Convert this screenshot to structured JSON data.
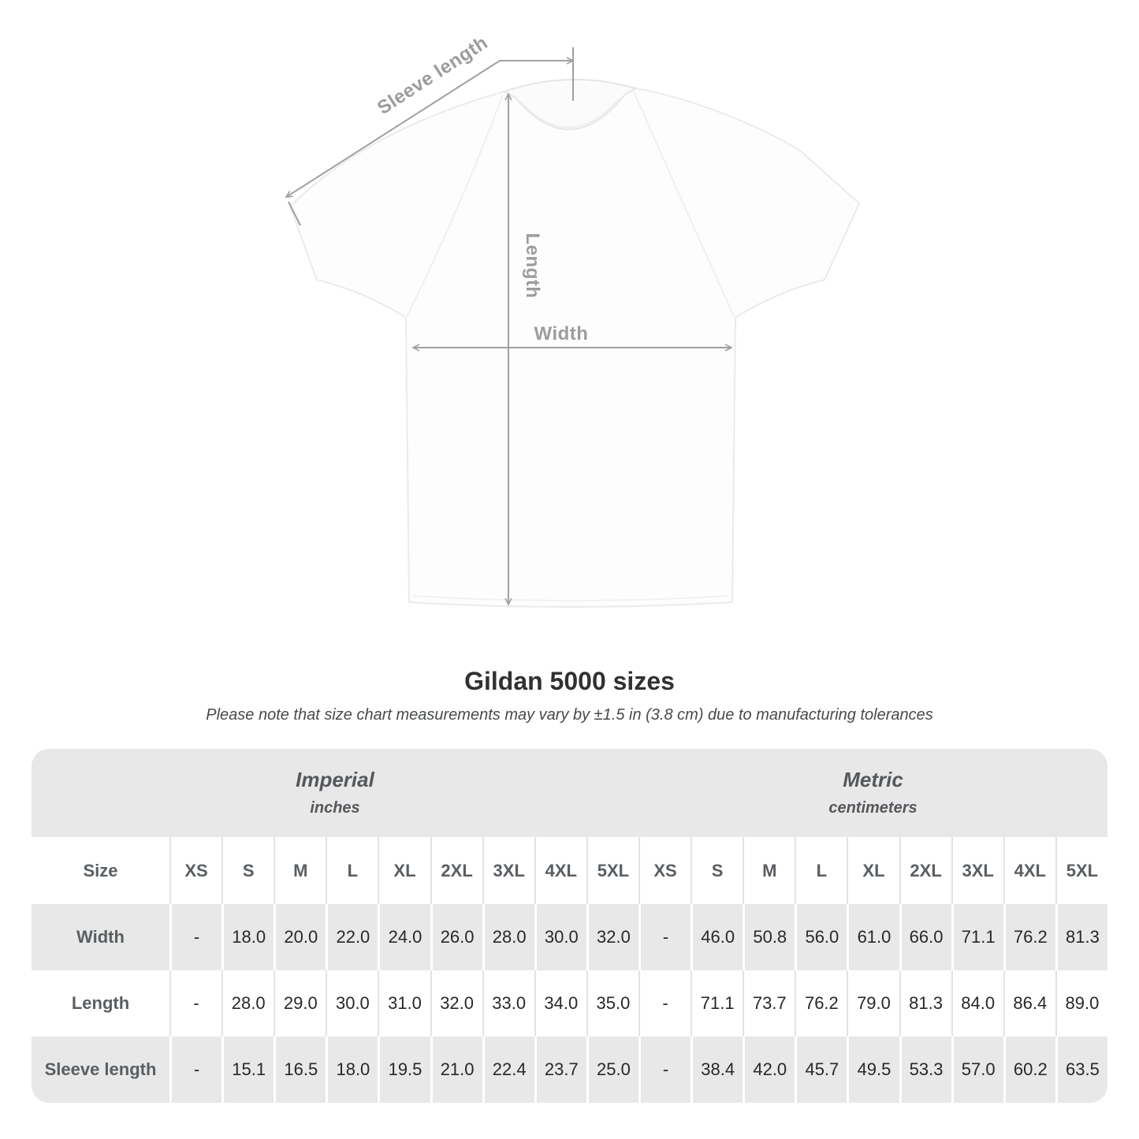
{
  "diagram": {
    "sleeve_label": "Sleeve length",
    "length_label": "Length",
    "width_label": "Width"
  },
  "title": "Gildan 5000 sizes",
  "subtitle": "Please note that size chart measurements may vary by ±1.5 in (3.8 cm) due to manufacturing tolerances",
  "table": {
    "size_header": "Size",
    "sizes": [
      "XS",
      "S",
      "M",
      "L",
      "XL",
      "2XL",
      "3XL",
      "4XL",
      "5XL"
    ],
    "unit_groups": [
      {
        "label": "Imperial",
        "sublabel": "inches"
      },
      {
        "label": "Metric",
        "sublabel": "centimeters"
      }
    ],
    "rows": [
      {
        "label": "Width",
        "imperial": [
          "-",
          "18.0",
          "20.0",
          "22.0",
          "24.0",
          "26.0",
          "28.0",
          "30.0",
          "32.0"
        ],
        "metric": [
          "-",
          "46.0",
          "50.8",
          "56.0",
          "61.0",
          "66.0",
          "71.1",
          "76.2",
          "81.3"
        ]
      },
      {
        "label": "Length",
        "imperial": [
          "-",
          "28.0",
          "29.0",
          "30.0",
          "31.0",
          "32.0",
          "33.0",
          "34.0",
          "35.0"
        ],
        "metric": [
          "-",
          "71.1",
          "73.7",
          "76.2",
          "79.0",
          "81.3",
          "84.0",
          "86.4",
          "89.0"
        ]
      },
      {
        "label": "Sleeve length",
        "imperial": [
          "-",
          "15.1",
          "16.5",
          "18.0",
          "19.5",
          "21.0",
          "22.4",
          "23.7",
          "25.0"
        ],
        "metric": [
          "-",
          "38.4",
          "42.0",
          "45.7",
          "49.5",
          "53.3",
          "57.0",
          "60.2",
          "63.5"
        ]
      }
    ]
  },
  "colors": {
    "row_gray": "#e8e8e8",
    "arrow_gray": "#a0a0a0",
    "header_text": "#595e62",
    "value_text": "#26282a"
  }
}
